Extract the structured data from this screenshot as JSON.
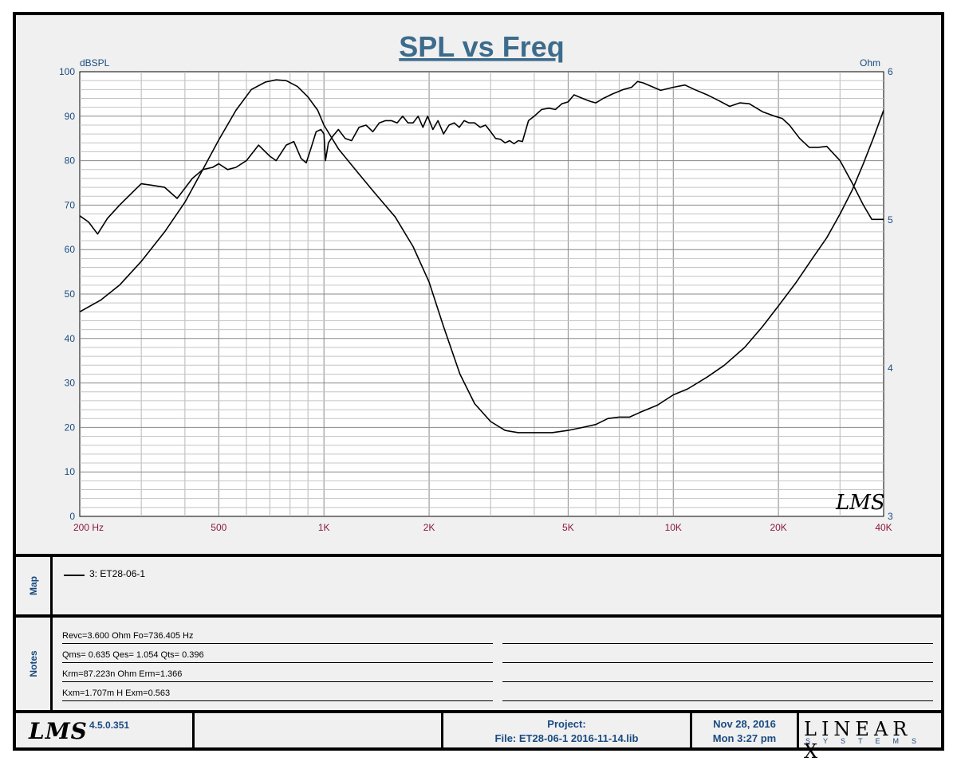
{
  "chart_data": {
    "type": "line",
    "title": "SPL vs Freq",
    "ylabel_left": "dBSPL",
    "ylabel_right": "Ohm",
    "xscale": "log",
    "xlim": [
      200,
      40000
    ],
    "ylim_left": [
      0,
      100
    ],
    "ylim_right": [
      3,
      6
    ],
    "grid": true,
    "x_ticks": [
      {
        "v": 200,
        "label": "200  Hz"
      },
      {
        "v": 500,
        "label": "500"
      },
      {
        "v": 1000,
        "label": "1K"
      },
      {
        "v": 2000,
        "label": "2K"
      },
      {
        "v": 5000,
        "label": "5K"
      },
      {
        "v": 10000,
        "label": "10K"
      },
      {
        "v": 20000,
        "label": "20K"
      },
      {
        "v": 40000,
        "label": "40K"
      }
    ],
    "y_ticks_left": [
      {
        "v": 0,
        "label": "0"
      },
      {
        "v": 10,
        "label": "10"
      },
      {
        "v": 20,
        "label": "20"
      },
      {
        "v": 30,
        "label": "30"
      },
      {
        "v": 40,
        "label": "40"
      },
      {
        "v": 50,
        "label": "50"
      },
      {
        "v": 60,
        "label": "60"
      },
      {
        "v": 70,
        "label": "70"
      },
      {
        "v": 80,
        "label": "80"
      },
      {
        "v": 90,
        "label": "90"
      },
      {
        "v": 100,
        "label": "100"
      }
    ],
    "y_ticks_right": [
      {
        "v": 3,
        "label": "3"
      },
      {
        "v": 4,
        "label": "4"
      },
      {
        "v": 5,
        "label": "5"
      },
      {
        "v": 6,
        "label": "6"
      }
    ],
    "series": [
      {
        "axis": "left",
        "points": [
          [
            200,
            67.6
          ],
          [
            212,
            66.2
          ],
          [
            225,
            63.5
          ],
          [
            240,
            67
          ],
          [
            260,
            70
          ],
          [
            280,
            72.5
          ],
          [
            300,
            74.8
          ],
          [
            320,
            74.5
          ],
          [
            350,
            74
          ],
          [
            380,
            71.5
          ],
          [
            420,
            76
          ],
          [
            450,
            78
          ],
          [
            480,
            78.5
          ],
          [
            500,
            79.3
          ],
          [
            530,
            78
          ],
          [
            560,
            78.5
          ],
          [
            600,
            80
          ],
          [
            650,
            83.5
          ],
          [
            700,
            81
          ],
          [
            730,
            80
          ],
          [
            780,
            83.5
          ],
          [
            820,
            84.3
          ],
          [
            860,
            80.5
          ],
          [
            890,
            79.5
          ],
          [
            920,
            83
          ],
          [
            950,
            86.5
          ],
          [
            980,
            87
          ],
          [
            1000,
            86
          ],
          [
            1010,
            80
          ],
          [
            1030,
            84
          ],
          [
            1060,
            85.5
          ],
          [
            1100,
            87
          ],
          [
            1150,
            85
          ],
          [
            1200,
            84.5
          ],
          [
            1260,
            87.5
          ],
          [
            1320,
            88
          ],
          [
            1380,
            86.5
          ],
          [
            1440,
            88.5
          ],
          [
            1500,
            89
          ],
          [
            1560,
            89
          ],
          [
            1620,
            88.5
          ],
          [
            1680,
            90
          ],
          [
            1740,
            88.5
          ],
          [
            1800,
            88.5
          ],
          [
            1860,
            90
          ],
          [
            1920,
            87.5
          ],
          [
            1980,
            90
          ],
          [
            2050,
            87
          ],
          [
            2120,
            89
          ],
          [
            2200,
            86
          ],
          [
            2280,
            88
          ],
          [
            2360,
            88.5
          ],
          [
            2440,
            87.5
          ],
          [
            2520,
            89
          ],
          [
            2600,
            88.5
          ],
          [
            2700,
            88.5
          ],
          [
            2800,
            87.5
          ],
          [
            2900,
            88
          ],
          [
            3000,
            86.5
          ],
          [
            3100,
            85
          ],
          [
            3200,
            84.8
          ],
          [
            3300,
            84
          ],
          [
            3400,
            84.5
          ],
          [
            3500,
            83.8
          ],
          [
            3600,
            84.5
          ],
          [
            3700,
            84.3
          ],
          [
            3850,
            89
          ],
          [
            4000,
            90
          ],
          [
            4200,
            91.5
          ],
          [
            4400,
            91.8
          ],
          [
            4600,
            91.5
          ],
          [
            4800,
            92.8
          ],
          [
            5000,
            93.2
          ],
          [
            5200,
            94.8
          ],
          [
            5500,
            94
          ],
          [
            5800,
            93.3
          ],
          [
            6000,
            93
          ],
          [
            6300,
            94
          ],
          [
            6700,
            95
          ],
          [
            7200,
            96
          ],
          [
            7600,
            96.5
          ],
          [
            7900,
            97.8
          ],
          [
            8200,
            97.5
          ],
          [
            8600,
            96.8
          ],
          [
            9200,
            95.8
          ],
          [
            10000,
            96.5
          ],
          [
            10800,
            97
          ],
          [
            11500,
            96
          ],
          [
            12500,
            94.8
          ],
          [
            13500,
            93.5
          ],
          [
            14500,
            92.2
          ],
          [
            15500,
            93
          ],
          [
            16500,
            92.8
          ],
          [
            18000,
            91
          ],
          [
            19500,
            90
          ],
          [
            20500,
            89.5
          ],
          [
            21500,
            88
          ],
          [
            23000,
            85
          ],
          [
            24500,
            83
          ],
          [
            26000,
            83
          ],
          [
            27500,
            83.2
          ],
          [
            30000,
            80
          ],
          [
            32500,
            75
          ],
          [
            35000,
            70
          ],
          [
            37000,
            66.8
          ],
          [
            40000,
            66.8
          ]
        ]
      },
      {
        "axis": "right",
        "points": [
          [
            200,
            4.38
          ],
          [
            230,
            4.46
          ],
          [
            260,
            4.56
          ],
          [
            300,
            4.72
          ],
          [
            350,
            4.92
          ],
          [
            400,
            5.12
          ],
          [
            450,
            5.34
          ],
          [
            500,
            5.54
          ],
          [
            560,
            5.74
          ],
          [
            620,
            5.88
          ],
          [
            680,
            5.93
          ],
          [
            730,
            5.945
          ],
          [
            780,
            5.94
          ],
          [
            840,
            5.9
          ],
          [
            900,
            5.83
          ],
          [
            960,
            5.74
          ],
          [
            1000,
            5.64
          ],
          [
            1100,
            5.48
          ],
          [
            1250,
            5.32
          ],
          [
            1400,
            5.18
          ],
          [
            1600,
            5.02
          ],
          [
            1800,
            4.82
          ],
          [
            2000,
            4.58
          ],
          [
            2200,
            4.28
          ],
          [
            2450,
            3.96
          ],
          [
            2700,
            3.76
          ],
          [
            3000,
            3.64
          ],
          [
            3300,
            3.58
          ],
          [
            3600,
            3.565
          ],
          [
            4000,
            3.565
          ],
          [
            4500,
            3.565
          ],
          [
            5000,
            3.58
          ],
          [
            5500,
            3.6
          ],
          [
            6000,
            3.62
          ],
          [
            6500,
            3.66
          ],
          [
            7000,
            3.67
          ],
          [
            7500,
            3.67
          ],
          [
            8000,
            3.7
          ],
          [
            9000,
            3.75
          ],
          [
            10000,
            3.82
          ],
          [
            11000,
            3.86
          ],
          [
            12500,
            3.94
          ],
          [
            14000,
            4.02
          ],
          [
            16000,
            4.14
          ],
          [
            18000,
            4.28
          ],
          [
            20000,
            4.42
          ],
          [
            22500,
            4.58
          ],
          [
            25000,
            4.74
          ],
          [
            27500,
            4.88
          ],
          [
            30000,
            5.04
          ],
          [
            32500,
            5.2
          ],
          [
            35000,
            5.38
          ],
          [
            37500,
            5.56
          ],
          [
            40000,
            5.74
          ]
        ]
      }
    ]
  },
  "map": {
    "side_label": "Map",
    "entries": [
      {
        "label": "3: ET28-06-1"
      }
    ]
  },
  "notes": {
    "side_label": "Notes",
    "lines": [
      "Revc=3.600 Ohm  Fo=736.405 Hz",
      "Qms= 0.635  Qes= 1.054  Qts= 0.396",
      "Krm=87.223n Ohm  Erm=1.366",
      "Kxm=1.707m H  Exm=0.563"
    ]
  },
  "footer": {
    "logo": "LMS",
    "version": "4.5.0.351",
    "project_label": "Project:",
    "file": "File: ET28-06-1  2016-11-14.lib",
    "date": "Nov 28, 2016",
    "time": "Mon  3:27 pm",
    "brand": "LINEAR X",
    "brand_sub": "SYSTEMS"
  },
  "watermark": "LMS"
}
